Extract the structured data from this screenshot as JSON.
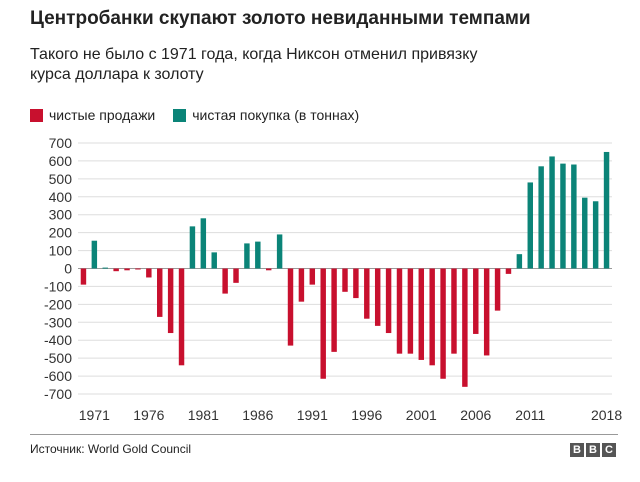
{
  "title": "Центробанки скупают золото невиданными темпами",
  "subtitle": "Такого не было с 1971 года, когда Никсон отменил привязку курса доллара к золоту",
  "legend": {
    "sales_label": "чистые продажи",
    "purchase_label": "чистая покупка (в тоннах)"
  },
  "colors": {
    "sales": "#c8102e",
    "purchase": "#0b8478",
    "grid": "#dddddd",
    "axis_text": "#333333"
  },
  "source": "Источник: World Gold Council",
  "logo": [
    "B",
    "B",
    "C"
  ],
  "chart_data": {
    "type": "bar",
    "title": "Центробанки скупают золото невиданными темпами",
    "subtitle": "Такого не было с 1971 года, когда Никсон отменил привязку курса доллара к золоту",
    "xlabel": "",
    "ylabel": "",
    "ylim": [
      -700,
      700
    ],
    "yticks": [
      700,
      600,
      500,
      400,
      300,
      200,
      100,
      0,
      -100,
      -200,
      -300,
      -400,
      -500,
      -600,
      -700
    ],
    "xtick_labels": [
      "1971",
      "1976",
      "1981",
      "1986",
      "1991",
      "1996",
      "2001",
      "2006",
      "2011",
      "2018"
    ],
    "grid": true,
    "legend_position": "top-left",
    "x": [
      1970,
      1971,
      1972,
      1973,
      1974,
      1975,
      1976,
      1977,
      1978,
      1979,
      1980,
      1981,
      1982,
      1983,
      1984,
      1985,
      1986,
      1987,
      1988,
      1989,
      1990,
      1991,
      1992,
      1993,
      1994,
      1995,
      1996,
      1997,
      1998,
      1999,
      2000,
      2001,
      2002,
      2003,
      2004,
      2005,
      2006,
      2007,
      2008,
      2009,
      2010,
      2011,
      2012,
      2013,
      2014,
      2015,
      2016,
      2017,
      2018
    ],
    "values": [
      -90,
      155,
      5,
      -15,
      -10,
      -5,
      -50,
      -270,
      -360,
      -540,
      235,
      280,
      90,
      -140,
      -80,
      140,
      150,
      -10,
      190,
      -430,
      -185,
      -90,
      -615,
      -465,
      -130,
      -165,
      -280,
      -320,
      -360,
      -475,
      -475,
      -510,
      -540,
      -615,
      -475,
      -660,
      -365,
      -485,
      -235,
      -30,
      80,
      480,
      570,
      625,
      585,
      580,
      395,
      375,
      650
    ],
    "series": [
      {
        "name": "чистые продажи",
        "sign": "negative"
      },
      {
        "name": "чистая покупка (в тоннах)",
        "sign": "positive"
      }
    ]
  }
}
